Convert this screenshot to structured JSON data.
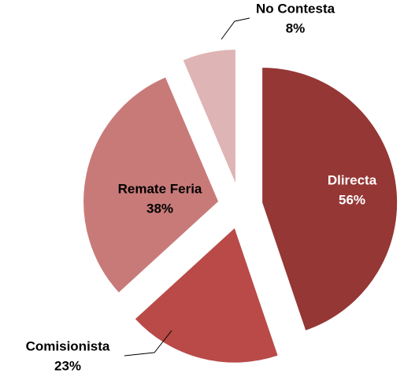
{
  "chart_data": {
    "type": "pie",
    "categories": [
      "Dlirecta",
      "Comisionista",
      "Remate Feria",
      "No Contesta"
    ],
    "values": [
      56,
      23,
      38,
      8
    ],
    "value_labels": [
      "56%",
      "23%",
      "38%",
      "8%"
    ],
    "colors": [
      "#953735",
      "#b94a48",
      "#c87a79",
      "#dfb4b4"
    ]
  }
}
